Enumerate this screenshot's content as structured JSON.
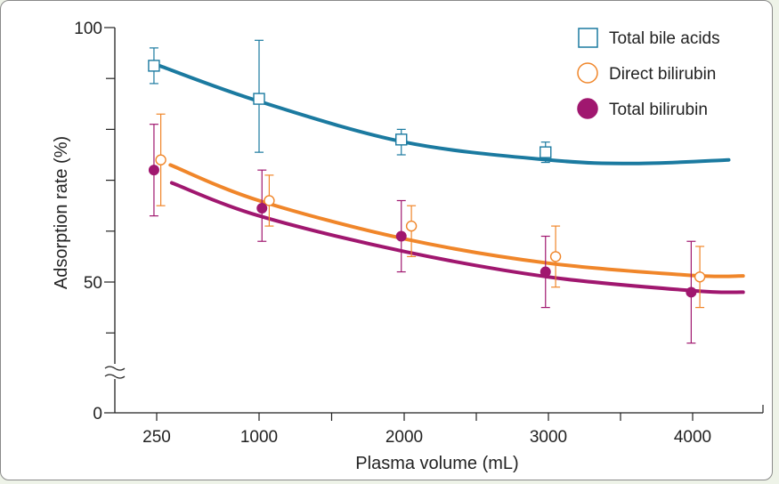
{
  "chart_data": {
    "type": "scatter",
    "title": "",
    "xlabel": "Plasma volume (mL)",
    "ylabel": "Adsorption rate (%)",
    "x_ticks": [
      "250",
      "1000",
      "2000",
      "3000",
      "4000"
    ],
    "x_values": [
      250,
      1000,
      2000,
      3000,
      4000
    ],
    "y_ticks": [
      "0",
      "50",
      "100"
    ],
    "y_axis_break": true,
    "ylim": [
      0,
      100
    ],
    "legend_position": "top-right",
    "series": [
      {
        "name": "Total bile acids",
        "marker": "open-square",
        "color": "#1b7aa0",
        "x": [
          230,
          1000,
          1980,
          2980
        ],
        "values": [
          92.5,
          86,
          78,
          75.5
        ],
        "err_high": [
          96,
          97.5,
          80,
          77.5
        ],
        "err_low": [
          89,
          75.5,
          75,
          73.5
        ],
        "fit_x": [
          270,
          1000,
          2000,
          3000,
          3600,
          4250
        ],
        "fit_y": [
          92.5,
          85.5,
          77.5,
          74,
          73.3,
          74
        ]
      },
      {
        "name": "Direct bilirubin",
        "marker": "open-circle",
        "color": "#f0862a",
        "x": [
          280,
          1070,
          2050,
          3050,
          4050
        ],
        "values": [
          74,
          66,
          61,
          55,
          51
        ],
        "err_high": [
          83,
          71,
          65,
          61,
          57
        ],
        "err_low": [
          65,
          61,
          55,
          49,
          45
        ],
        "fit_x": [
          350,
          1000,
          2000,
          3000,
          4000,
          4350
        ],
        "fit_y": [
          73,
          66,
          58.5,
          53.7,
          51.3,
          51.2
        ]
      },
      {
        "name": "Total bilirubin",
        "marker": "filled-circle",
        "color": "#a0176f",
        "x": [
          230,
          1020,
          1980,
          2980,
          3990
        ],
        "values": [
          72,
          64.5,
          59,
          52,
          48
        ],
        "err_high": [
          81,
          72,
          66,
          59,
          58
        ],
        "err_low": [
          63,
          58,
          52,
          45,
          38
        ],
        "fit_x": [
          360,
          1000,
          2000,
          3000,
          4000,
          4350
        ],
        "fit_y": [
          69.5,
          63,
          56,
          51,
          48.3,
          48
        ]
      }
    ]
  }
}
